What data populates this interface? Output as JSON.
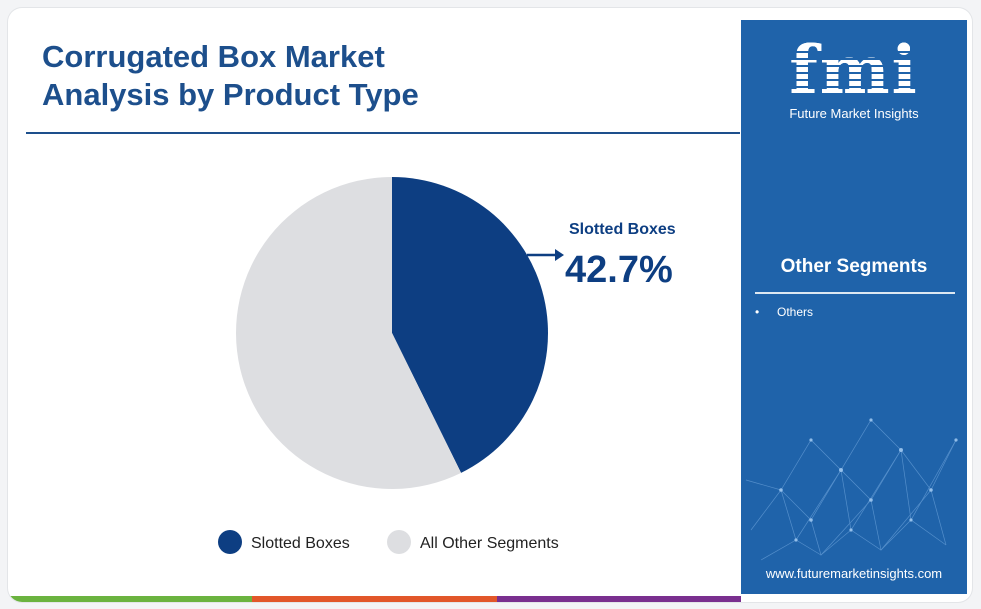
{
  "chart_data": {
    "type": "pie",
    "title": "Corrugated Box Market\nAnalysis by Product Type",
    "slices": [
      {
        "name": "Slotted Boxes",
        "value": 42.7,
        "color": "#0d3e82"
      },
      {
        "name": "All Other Segments",
        "value": 57.3,
        "color": "#dddee1"
      }
    ],
    "callout": {
      "name": "Slotted Boxes",
      "value_label": "42.7%"
    },
    "legend": {
      "position": "bottom",
      "items": [
        {
          "label": "Slotted Boxes",
          "color": "#0d3e82"
        },
        {
          "label": "All Other Segments",
          "color": "#dddee1"
        }
      ]
    }
  },
  "sidebar": {
    "logo_text": "fmi",
    "logo_subtitle": "Future Market Insights",
    "heading": "Other Segments",
    "items": [
      "Others"
    ],
    "website": "www.futuremarketinsights.com"
  },
  "colors": {
    "title": "#1d4f8c",
    "sidebar_bg": "#1f63aa",
    "bottom_bar": [
      "#6bb33f",
      "#e2572a",
      "#7a2f8f"
    ]
  }
}
